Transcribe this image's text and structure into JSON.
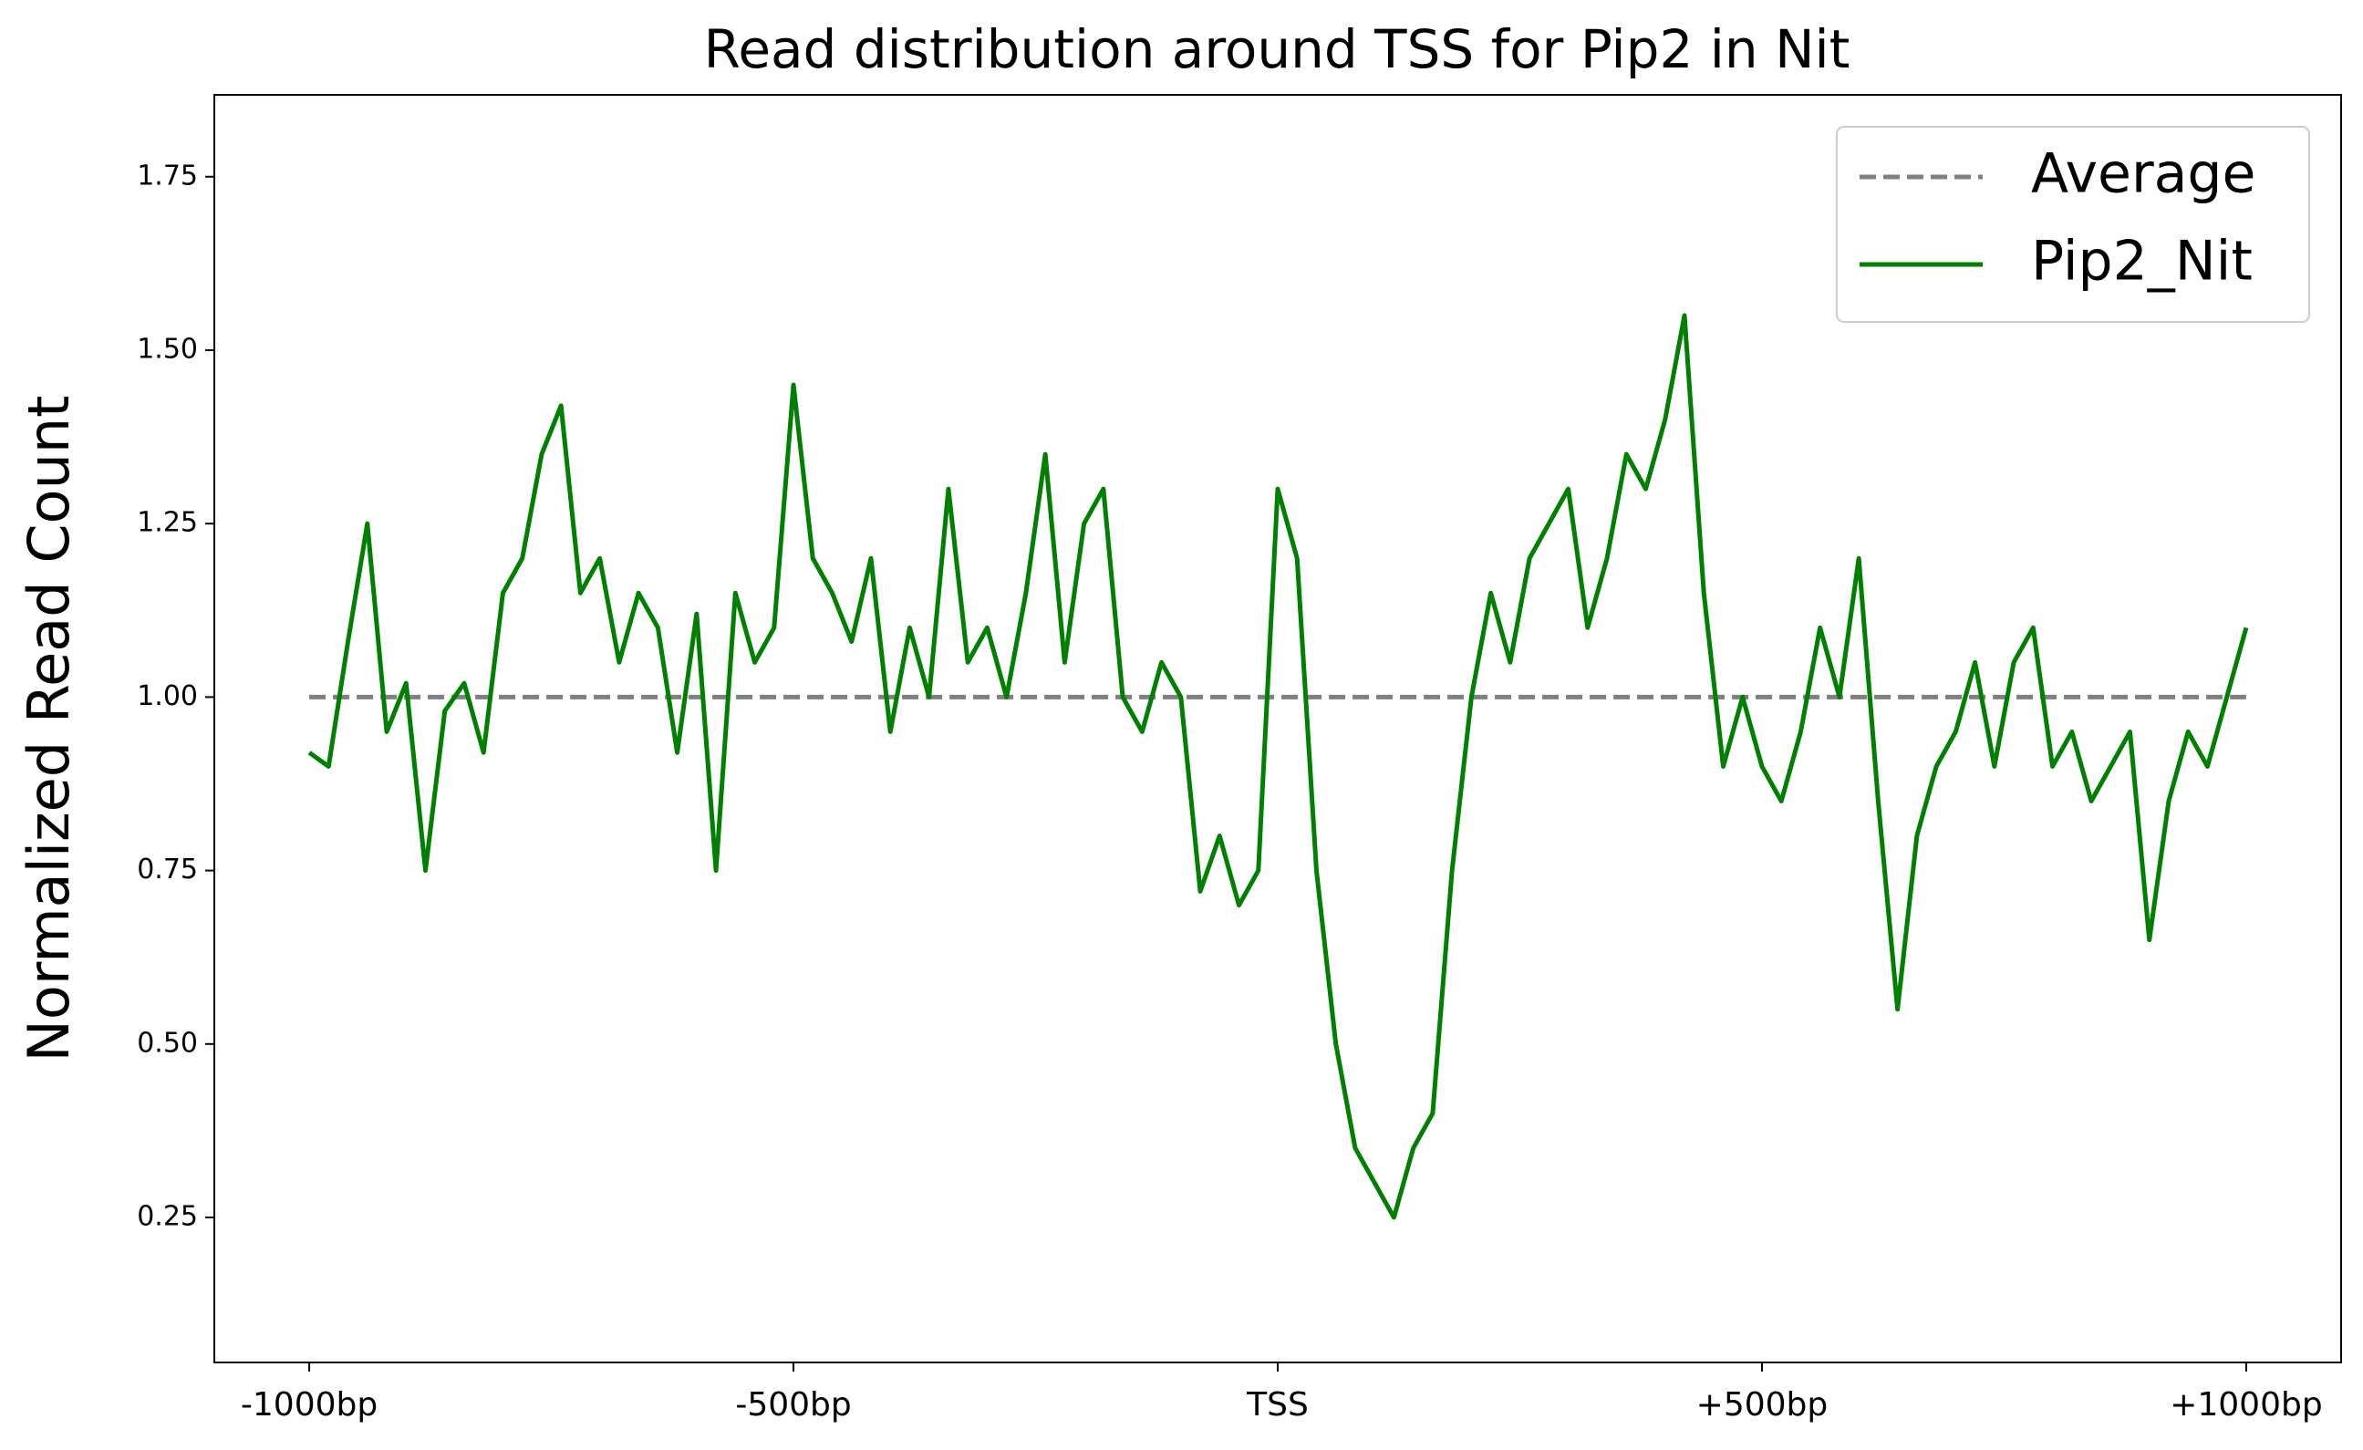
{
  "chart_data": {
    "type": "line",
    "title": "Read distribution around TSS for Pip2 in Nit",
    "ylabel": "Normalized Read Count",
    "xlim": [
      -1098,
      1098
    ],
    "ylim": [
      0.041,
      1.868
    ],
    "xticks": [
      {
        "value": -1000,
        "label": "-1000bp"
      },
      {
        "value": -500,
        "label": "-500bp"
      },
      {
        "value": 0,
        "label": "TSS"
      },
      {
        "value": 500,
        "label": "+500bp"
      },
      {
        "value": 1000,
        "label": "+1000bp"
      }
    ],
    "yticks": [
      {
        "value": 0.25,
        "label": "0.25"
      },
      {
        "value": 0.5,
        "label": "0.50"
      },
      {
        "value": 0.75,
        "label": "0.75"
      },
      {
        "value": 1.0,
        "label": "1.00"
      },
      {
        "value": 1.25,
        "label": "1.25"
      },
      {
        "value": 1.5,
        "label": "1.50"
      },
      {
        "value": 1.75,
        "label": "1.75"
      }
    ],
    "legend": "upper right",
    "series": [
      {
        "name": "Average",
        "color": "#808080",
        "dashed": true,
        "x": [
          -1000,
          1000
        ],
        "values": [
          1.0,
          1.0
        ]
      },
      {
        "name": "Pip2_Nit",
        "color": "#008000",
        "dashed": false,
        "x": [
          -1000,
          -980,
          -960,
          -940,
          -920,
          -900,
          -880,
          -860,
          -840,
          -820,
          -800,
          -780,
          -760,
          -740,
          -720,
          -700,
          -680,
          -660,
          -640,
          -620,
          -600,
          -580,
          -560,
          -540,
          -520,
          -500,
          -480,
          -460,
          -440,
          -420,
          -400,
          -380,
          -360,
          -340,
          -320,
          -300,
          -280,
          -260,
          -240,
          -220,
          -200,
          -180,
          -160,
          -140,
          -120,
          -100,
          -80,
          -60,
          -40,
          -20,
          0,
          20,
          40,
          60,
          80,
          100,
          120,
          140,
          160,
          180,
          200,
          220,
          240,
          260,
          280,
          300,
          320,
          340,
          360,
          380,
          400,
          420,
          440,
          460,
          480,
          500,
          520,
          540,
          560,
          580,
          600,
          620,
          640,
          660,
          680,
          700,
          720,
          740,
          760,
          780,
          800,
          820,
          840,
          860,
          880,
          900,
          920,
          940,
          960,
          980,
          1000
        ],
        "values": [
          0.92,
          0.9,
          1.08,
          1.25,
          0.95,
          1.02,
          0.75,
          0.98,
          1.02,
          0.92,
          1.15,
          1.2,
          1.35,
          1.42,
          1.15,
          1.2,
          1.05,
          1.15,
          1.1,
          0.92,
          1.12,
          0.75,
          1.15,
          1.05,
          1.1,
          1.45,
          1.2,
          1.15,
          1.08,
          1.2,
          0.95,
          1.1,
          1.0,
          1.3,
          1.05,
          1.1,
          1.0,
          1.15,
          1.35,
          1.05,
          1.25,
          1.3,
          1.0,
          0.95,
          1.05,
          1.0,
          0.72,
          0.8,
          0.7,
          0.75,
          1.3,
          1.2,
          0.75,
          0.5,
          0.35,
          0.3,
          0.25,
          0.35,
          0.4,
          0.75,
          1.0,
          1.15,
          1.05,
          1.2,
          1.25,
          1.3,
          1.1,
          1.2,
          1.35,
          1.3,
          1.4,
          1.55,
          1.15,
          0.9,
          1.0,
          0.9,
          0.85,
          0.95,
          1.1,
          1.0,
          1.2,
          0.85,
          0.55,
          0.8,
          0.9,
          0.95,
          1.05,
          0.9,
          1.05,
          1.1,
          0.9,
          0.95,
          0.85,
          0.9,
          0.95,
          0.65,
          0.85,
          0.95,
          0.9,
          1.0,
          1.1
        ]
      }
    ]
  }
}
